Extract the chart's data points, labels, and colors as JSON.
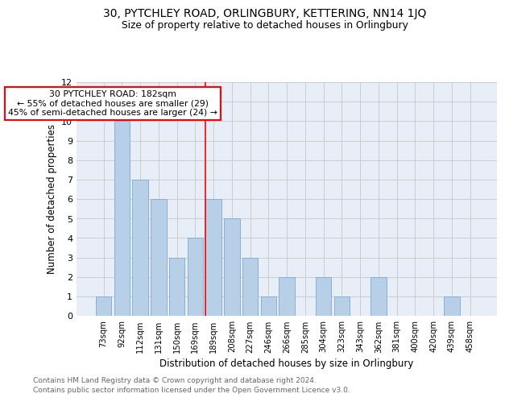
{
  "title": "30, PYTCHLEY ROAD, ORLINGBURY, KETTERING, NN14 1JQ",
  "subtitle": "Size of property relative to detached houses in Orlingbury",
  "xlabel": "Distribution of detached houses by size in Orlingbury",
  "ylabel": "Number of detached properties",
  "footnote1": "Contains HM Land Registry data © Crown copyright and database right 2024.",
  "footnote2": "Contains public sector information licensed under the Open Government Licence v3.0.",
  "annotation_line1": "30 PYTCHLEY ROAD: 182sqm",
  "annotation_line2": "← 55% of detached houses are smaller (29)",
  "annotation_line3": "45% of semi-detached houses are larger (24) →",
  "bar_labels": [
    "73sqm",
    "92sqm",
    "112sqm",
    "131sqm",
    "150sqm",
    "169sqm",
    "189sqm",
    "208sqm",
    "227sqm",
    "246sqm",
    "266sqm",
    "285sqm",
    "304sqm",
    "323sqm",
    "343sqm",
    "362sqm",
    "381sqm",
    "400sqm",
    "420sqm",
    "439sqm",
    "458sqm"
  ],
  "bar_values": [
    1,
    10,
    7,
    6,
    3,
    4,
    6,
    5,
    3,
    1,
    2,
    0,
    2,
    1,
    0,
    2,
    0,
    0,
    0,
    1,
    0
  ],
  "bar_color": "#b8cfe8",
  "bar_edge_color": "#8aafd4",
  "grid_color": "#cccccc",
  "background_color": "#e8eef8",
  "ylim": [
    0,
    12
  ],
  "yticks": [
    0,
    1,
    2,
    3,
    4,
    5,
    6,
    7,
    8,
    9,
    10,
    11,
    12
  ]
}
